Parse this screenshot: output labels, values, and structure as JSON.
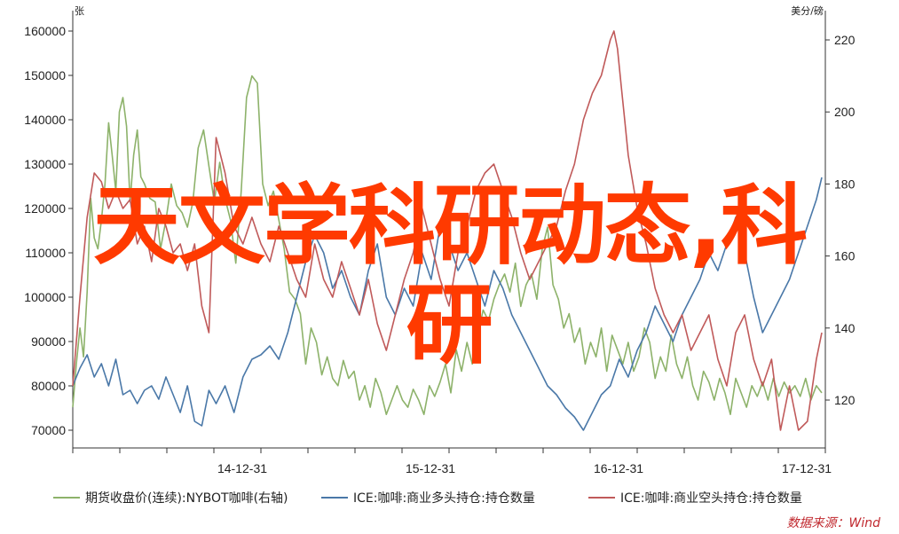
{
  "chart_data": {
    "type": "line",
    "left_axis_unit": "张",
    "right_axis_unit": "美分/磅",
    "yleft_ticks": [
      160000,
      150000,
      140000,
      130000,
      120000,
      110000,
      100000,
      90000,
      80000,
      70000
    ],
    "yright_ticks": [
      220,
      200,
      180,
      160,
      140,
      120
    ],
    "yleft_range": [
      67000,
      162000
    ],
    "yright_range": [
      112,
      224
    ],
    "x_ticks": [
      "14-12-31",
      "15-12-31",
      "16-12-31",
      "17-12-31"
    ],
    "series": [
      {
        "name": "期货收盘价(连续):NYBOT咖啡(右轴)",
        "axis": "right",
        "color": "#8db26a",
        "x": [
          0,
          0.2,
          0.4,
          0.6,
          0.8,
          1.0,
          1.2,
          1.4,
          1.6,
          1.8,
          2.0,
          2.2,
          2.4,
          2.6,
          2.8,
          3.0,
          3.2,
          3.4,
          3.6,
          3.8,
          4.0,
          4.3,
          4.6,
          4.9,
          5.2,
          5.5,
          5.8,
          6.1,
          6.4,
          6.7,
          7.0,
          7.3,
          7.6,
          7.9,
          8.2,
          8.5,
          8.8,
          9.1,
          9.4,
          9.7,
          10.0,
          10.3,
          10.6,
          10.9,
          11.2,
          11.5,
          11.8,
          12.1,
          12.4,
          12.7,
          13.0,
          13.3,
          13.6,
          13.9,
          14.2,
          14.5,
          14.8,
          15.1,
          15.4,
          15.7,
          16.0,
          16.3,
          16.6,
          16.9,
          17.2,
          17.5,
          17.8,
          18.1,
          18.4,
          18.7,
          19.0,
          19.3,
          19.6,
          19.9,
          20.2,
          20.5,
          20.8,
          21.1,
          21.4,
          21.7,
          22.0,
          22.3,
          22.6,
          22.9,
          23.2,
          23.5,
          23.8,
          24.1,
          24.4,
          24.7,
          25.0,
          25.3,
          25.6,
          25.9,
          26.2,
          26.5,
          26.8,
          27.1,
          27.4,
          27.7,
          28.0,
          28.3,
          28.6,
          28.9,
          29.2,
          29.5,
          29.8,
          30.1,
          30.4,
          30.7,
          31.0,
          31.3,
          31.6,
          31.9,
          32.2,
          32.5,
          32.8,
          33.1,
          33.4,
          33.7,
          34.0,
          34.3,
          34.6,
          34.9,
          35.2,
          35.5,
          35.8,
          36.1,
          36.4,
          36.7,
          37.0,
          37.3,
          37.6,
          37.9,
          38.2,
          38.5,
          38.8,
          39.1,
          39.4,
          39.7,
          40.0,
          40.3,
          40.6,
          40.9,
          41.2,
          41.5,
          41.8
        ],
        "values": [
          118,
          130,
          140,
          132,
          150,
          176,
          165,
          162,
          170,
          180,
          197,
          188,
          178,
          200,
          204,
          196,
          175,
          188,
          195,
          182,
          180,
          176,
          175,
          162,
          170,
          180,
          174,
          172,
          168,
          175,
          190,
          195,
          185,
          175,
          186,
          176,
          170,
          158,
          178,
          204,
          210,
          208,
          180,
          174,
          178,
          170,
          162,
          150,
          148,
          144,
          130,
          140,
          136,
          127,
          132,
          126,
          124,
          131,
          126,
          128,
          120,
          124,
          118,
          126,
          122,
          116,
          120,
          124,
          120,
          118,
          123,
          120,
          116,
          124,
          121,
          125,
          130,
          122,
          134,
          128,
          136,
          130,
          138,
          145,
          142,
          148,
          152,
          155,
          150,
          158,
          146,
          152,
          155,
          148,
          162,
          168,
          152,
          148,
          140,
          144,
          136,
          140,
          130,
          136,
          132,
          140,
          128,
          138,
          134,
          130,
          136,
          128,
          132,
          140,
          136,
          126,
          132,
          128,
          138,
          130,
          126,
          132,
          124,
          120,
          128,
          125,
          120,
          126,
          122,
          116,
          126,
          122,
          118,
          124,
          121,
          125,
          120,
          126,
          121,
          125,
          122,
          124,
          121,
          126,
          120,
          124,
          122
        ]
      },
      {
        "name": "ICE:咖啡:商业多头持仓:持仓数量",
        "axis": "left",
        "color": "#4a78a8",
        "x": [
          0,
          0.4,
          0.8,
          1.2,
          1.6,
          2.0,
          2.4,
          2.8,
          3.2,
          3.6,
          4.0,
          4.4,
          4.8,
          5.2,
          5.6,
          6.0,
          6.4,
          6.8,
          7.2,
          7.6,
          8.0,
          8.5,
          9.0,
          9.5,
          10.0,
          10.5,
          11.0,
          11.5,
          12.0,
          12.5,
          13.0,
          13.5,
          14.0,
          14.5,
          15.0,
          15.5,
          16.0,
          16.5,
          17.0,
          17.5,
          18.0,
          18.5,
          19.0,
          19.5,
          20.0,
          20.5,
          21.0,
          21.5,
          22.0,
          22.5,
          23.0,
          23.5,
          24.0,
          24.5,
          25.0,
          25.5,
          26.0,
          26.5,
          27.0,
          27.5,
          28.0,
          28.5,
          29.0,
          29.5,
          30.0,
          30.5,
          31.0,
          31.5,
          32.0,
          32.5,
          33.0,
          33.5,
          34.0,
          34.5,
          35.0,
          35.5,
          36.0,
          36.5,
          37.0,
          37.5,
          38.0,
          38.5,
          39.0,
          39.5,
          40.0,
          40.5,
          41.0,
          41.5,
          41.8
        ],
        "values": [
          80000,
          84000,
          87000,
          82000,
          85000,
          80000,
          86000,
          78000,
          79000,
          76000,
          79000,
          80000,
          77000,
          82000,
          78000,
          74000,
          80000,
          72000,
          71000,
          79000,
          76000,
          80000,
          74000,
          82000,
          86000,
          87000,
          89000,
          86000,
          92000,
          100000,
          108000,
          114000,
          110000,
          102000,
          106000,
          100000,
          96000,
          106000,
          112000,
          100000,
          96000,
          102000,
          98000,
          110000,
          104000,
          116000,
          112000,
          106000,
          110000,
          104000,
          98000,
          106000,
          102000,
          96000,
          92000,
          88000,
          84000,
          80000,
          78000,
          75000,
          73000,
          70000,
          74000,
          78000,
          80000,
          86000,
          82000,
          88000,
          92000,
          98000,
          94000,
          90000,
          96000,
          100000,
          104000,
          110000,
          106000,
          112000,
          118000,
          110000,
          100000,
          92000,
          96000,
          100000,
          104000,
          110000,
          116000,
          122000,
          127000
        ]
      },
      {
        "name": "ICE:咖啡:商业空头持仓:持仓数量",
        "axis": "left",
        "color": "#c05a5a",
        "x": [
          0,
          0.4,
          0.8,
          1.2,
          1.6,
          2.0,
          2.4,
          2.8,
          3.2,
          3.6,
          4.0,
          4.4,
          4.8,
          5.2,
          5.6,
          6.0,
          6.4,
          6.8,
          7.2,
          7.6,
          8.0,
          8.5,
          9.0,
          9.5,
          10.0,
          10.5,
          11.0,
          11.5,
          12.0,
          12.5,
          13.0,
          13.5,
          14.0,
          14.5,
          15.0,
          15.5,
          16.0,
          16.5,
          17.0,
          17.5,
          18.0,
          18.5,
          19.0,
          19.5,
          20.0,
          20.5,
          21.0,
          21.5,
          22.0,
          22.5,
          23.0,
          23.5,
          24.0,
          24.5,
          25.0,
          25.5,
          26.0,
          26.5,
          27.0,
          27.5,
          28.0,
          28.5,
          29.0,
          29.5,
          30.0,
          30.2,
          30.4,
          30.6,
          30.8,
          31.0,
          31.5,
          32.0,
          32.5,
          33.0,
          33.5,
          34.0,
          34.5,
          35.0,
          35.5,
          36.0,
          36.5,
          37.0,
          37.5,
          38.0,
          38.5,
          39.0,
          39.5,
          40.0,
          40.5,
          41.0,
          41.5,
          41.8
        ],
        "values": [
          80000,
          100000,
          118000,
          128000,
          126000,
          120000,
          124000,
          120000,
          122000,
          112000,
          116000,
          108000,
          120000,
          116000,
          110000,
          112000,
          106000,
          112000,
          98000,
          92000,
          136000,
          128000,
          116000,
          112000,
          118000,
          112000,
          108000,
          116000,
          110000,
          104000,
          100000,
          112000,
          104000,
          100000,
          108000,
          102000,
          96000,
          104000,
          94000,
          88000,
          96000,
          104000,
          110000,
          120000,
          112000,
          104000,
          98000,
          110000,
          116000,
          124000,
          128000,
          130000,
          124000,
          118000,
          110000,
          104000,
          108000,
          112000,
          116000,
          124000,
          130000,
          140000,
          146000,
          150000,
          158000,
          160000,
          156000,
          148000,
          140000,
          132000,
          120000,
          112000,
          102000,
          96000,
          92000,
          96000,
          88000,
          92000,
          96000,
          86000,
          80000,
          92000,
          96000,
          86000,
          80000,
          86000,
          70000,
          80000,
          70000,
          72000,
          86000,
          92000
        ]
      }
    ]
  },
  "legend": [
    {
      "label": "期货收盘价(连续):NYBOT咖啡(右轴)",
      "color": "#8db26a"
    },
    {
      "label": "ICE:咖啡:商业多头持仓:持仓数量",
      "color": "#4a78a8"
    },
    {
      "label": "ICE:咖啡:商业空头持仓:持仓数量",
      "color": "#c05a5a"
    }
  ],
  "source_text": "数据来源：Wind",
  "overlay": {
    "line1": "天文学科研动态,科",
    "line2": "研"
  }
}
